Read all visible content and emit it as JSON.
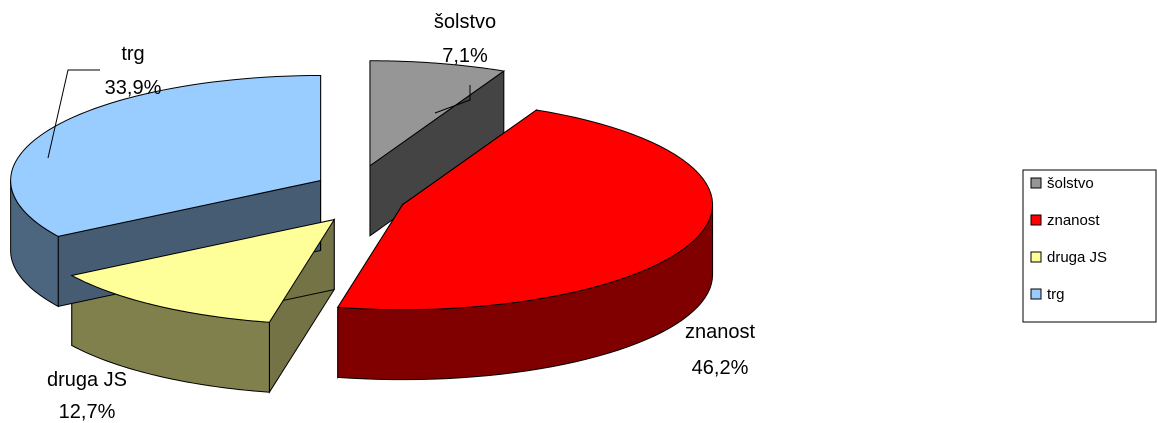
{
  "chart_data": {
    "type": "pie",
    "categories": [
      "šolstvo",
      "znanost",
      "druga JS",
      "trg"
    ],
    "values": [
      7.1,
      46.2,
      12.7,
      33.9
    ],
    "value_labels": [
      "7,1%",
      "46,2%",
      "12,7%",
      "33,9%"
    ],
    "colors": [
      "#969696",
      "#ff0000",
      "#ffff99",
      "#99ccff"
    ],
    "legend": "right"
  }
}
